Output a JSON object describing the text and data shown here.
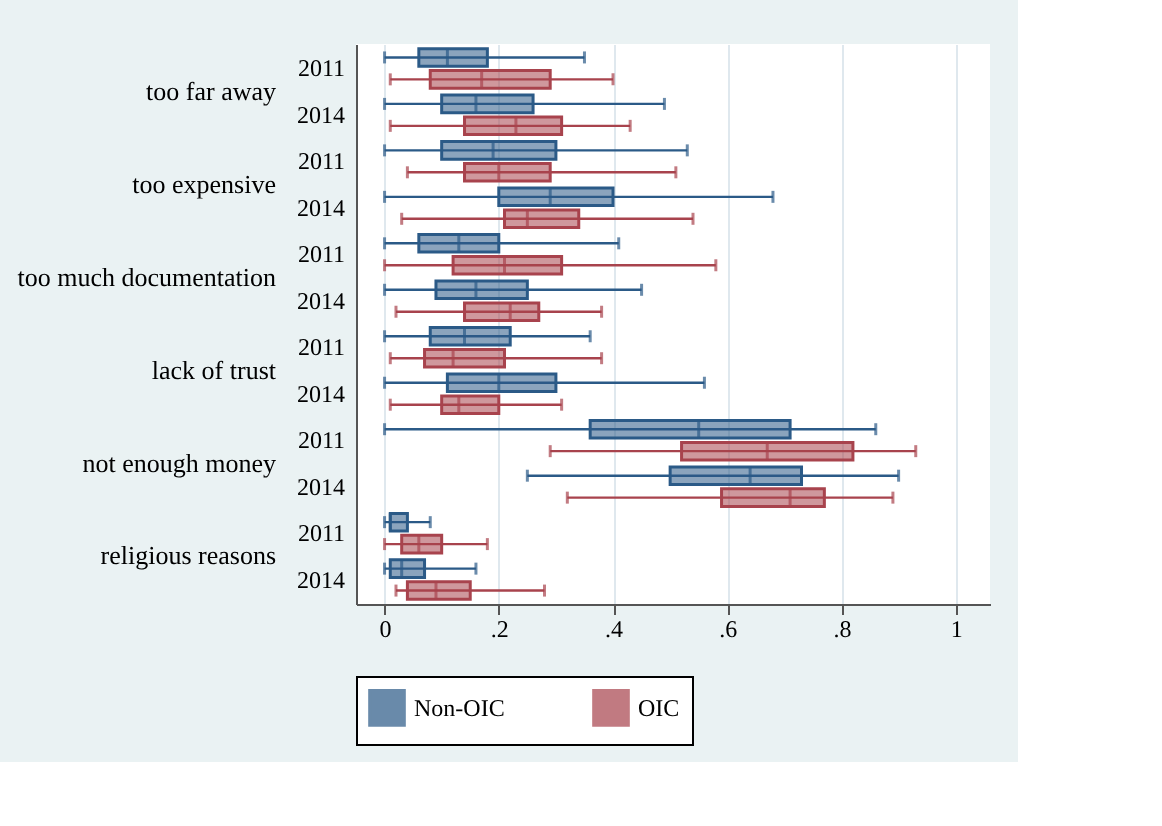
{
  "chart_data": {
    "type": "box",
    "orientation": "horizontal",
    "categories": [
      "2011",
      "2014",
      "2011",
      "2014",
      "2011",
      "2014",
      "2011",
      "2014",
      "2011",
      "2014",
      "2011",
      "2014"
    ],
    "annotations": [
      "too far away",
      "too expensive",
      "too much documentation",
      "lack of trust",
      "not enough money",
      "religious reasons"
    ],
    "xlim": [
      -0.05,
      1.06
    ],
    "xticks": [
      0,
      {
        "value": 0.2,
        "label": ".2"
      },
      {
        "value": 0.4,
        "label": ".4"
      },
      {
        "value": 0.6,
        "label": ".6"
      },
      {
        "value": 0.8,
        "label": ".8"
      },
      1
    ],
    "grid": "x",
    "legend": "bottom",
    "series": [
      {
        "name": "Non-OIC",
        "color": "#2b5a87",
        "boxes": [
          {
            "low": 0,
            "q1": 0.06,
            "median": 0.11,
            "q3": 0.18,
            "high": 0.35
          },
          {
            "low": 0,
            "q1": 0.1,
            "median": 0.16,
            "q3": 0.26,
            "high": 0.49
          },
          {
            "low": 0,
            "q1": 0.1,
            "median": 0.19,
            "q3": 0.3,
            "high": 0.53
          },
          {
            "low": 0,
            "q1": 0.2,
            "median": 0.29,
            "q3": 0.4,
            "high": 0.68
          },
          {
            "low": 0,
            "q1": 0.06,
            "median": 0.13,
            "q3": 0.2,
            "high": 0.41
          },
          {
            "low": 0,
            "q1": 0.09,
            "median": 0.16,
            "q3": 0.25,
            "high": 0.45
          },
          {
            "low": 0,
            "q1": 0.08,
            "median": 0.14,
            "q3": 0.22,
            "high": 0.36
          },
          {
            "low": 0,
            "q1": 0.11,
            "median": 0.2,
            "q3": 0.3,
            "high": 0.56
          },
          {
            "low": 0,
            "q1": 0.36,
            "median": 0.55,
            "q3": 0.71,
            "high": 0.86
          },
          {
            "low": 0.25,
            "q1": 0.5,
            "median": 0.64,
            "q3": 0.73,
            "high": 0.9
          },
          {
            "low": 0,
            "q1": 0.01,
            "median": 0.01,
            "q3": 0.04,
            "high": 0.08
          },
          {
            "low": 0,
            "q1": 0.01,
            "median": 0.03,
            "q3": 0.07,
            "high": 0.16
          }
        ]
      },
      {
        "name": "OIC",
        "color": "#a8434d",
        "boxes": [
          {
            "low": 0.01,
            "q1": 0.08,
            "median": 0.17,
            "q3": 0.29,
            "high": 0.4
          },
          {
            "low": 0.01,
            "q1": 0.14,
            "median": 0.23,
            "q3": 0.31,
            "high": 0.43
          },
          {
            "low": 0.04,
            "q1": 0.14,
            "median": 0.2,
            "q3": 0.29,
            "high": 0.51
          },
          {
            "low": 0.03,
            "q1": 0.21,
            "median": 0.25,
            "q3": 0.34,
            "high": 0.54
          },
          {
            "low": 0,
            "q1": 0.12,
            "median": 0.21,
            "q3": 0.31,
            "high": 0.58
          },
          {
            "low": 0.02,
            "q1": 0.14,
            "median": 0.22,
            "q3": 0.27,
            "high": 0.38
          },
          {
            "low": 0.01,
            "q1": 0.07,
            "median": 0.12,
            "q3": 0.21,
            "high": 0.38
          },
          {
            "low": 0.01,
            "q1": 0.1,
            "median": 0.13,
            "q3": 0.2,
            "high": 0.31
          },
          {
            "low": 0.29,
            "q1": 0.52,
            "median": 0.67,
            "q3": 0.82,
            "high": 0.93
          },
          {
            "low": 0.32,
            "q1": 0.59,
            "median": 0.71,
            "q3": 0.77,
            "high": 0.89
          },
          {
            "low": 0,
            "q1": 0.03,
            "median": 0.06,
            "q3": 0.1,
            "high": 0.18
          },
          {
            "low": 0.02,
            "q1": 0.04,
            "median": 0.09,
            "q3": 0.15,
            "high": 0.28
          }
        ]
      }
    ]
  }
}
